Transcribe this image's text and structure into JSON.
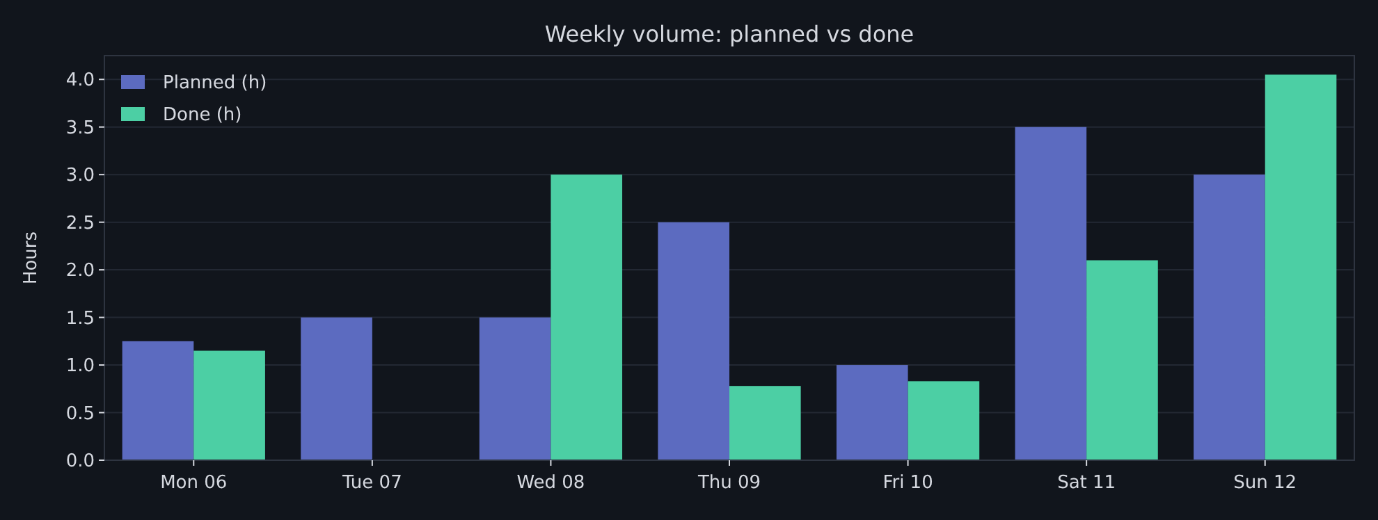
{
  "chart_data": {
    "type": "bar",
    "title": "Weekly volume: planned vs done",
    "ylabel": "Hours",
    "categories": [
      "Mon 06",
      "Tue 07",
      "Wed 08",
      "Thu 09",
      "Fri 10",
      "Sat 11",
      "Sun 12"
    ],
    "series": [
      {
        "name": "Planned (h)",
        "color": "#5c6bc0",
        "values": [
          1.25,
          1.5,
          1.5,
          2.5,
          1.0,
          3.5,
          3.0
        ]
      },
      {
        "name": "Done (h)",
        "color": "#4ccfa4",
        "values": [
          1.15,
          0,
          3.0,
          0.78,
          0.83,
          2.1,
          4.05
        ]
      }
    ],
    "ylim": [
      0,
      4.25
    ],
    "yticks": [
      {
        "value": 0,
        "label": "0.0"
      },
      0.5,
      {
        "value": 1,
        "label": "1.0"
      },
      1.5,
      {
        "value": 2,
        "label": "2.0"
      },
      2.5,
      {
        "value": 3,
        "label": "3.0"
      },
      3.5,
      {
        "value": 4,
        "label": "4.0"
      }
    ],
    "grid": "y",
    "legend": "top left"
  }
}
